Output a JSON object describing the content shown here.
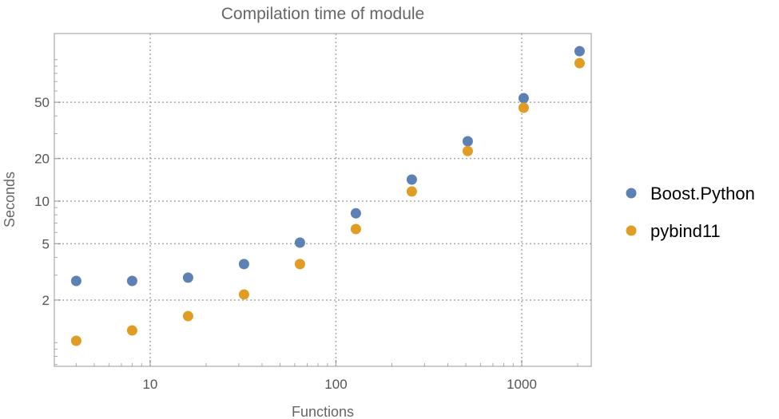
{
  "chart_data": {
    "type": "scatter",
    "title": "Compilation time of module",
    "xlabel": "Functions",
    "ylabel": "Seconds",
    "x_scale": "log",
    "y_scale": "log",
    "xlim": [
      3.05,
      2366
    ],
    "ylim": [
      0.68,
      153
    ],
    "x_ticks": [
      10,
      100,
      1000
    ],
    "x_tick_labels": [
      "10",
      "100",
      "1000"
    ],
    "y_ticks": [
      2,
      5,
      10,
      20,
      50
    ],
    "y_tick_labels": [
      "2",
      "5",
      "10",
      "20",
      "50"
    ],
    "grid": true,
    "legend_position": "right",
    "x": [
      4,
      8,
      16,
      32,
      64,
      128,
      256,
      512,
      1024,
      2048
    ],
    "series": [
      {
        "name": "Boost.Python",
        "color": "#5e81b5",
        "values": [
          2.73,
          2.73,
          2.88,
          3.59,
          5.09,
          8.2,
          14.2,
          26.5,
          53.4,
          114.8
        ]
      },
      {
        "name": "pybind11",
        "color": "#e19c24",
        "values": [
          1.03,
          1.22,
          1.54,
          2.19,
          3.59,
          6.35,
          11.7,
          22.6,
          45.7,
          94.4
        ]
      }
    ]
  }
}
